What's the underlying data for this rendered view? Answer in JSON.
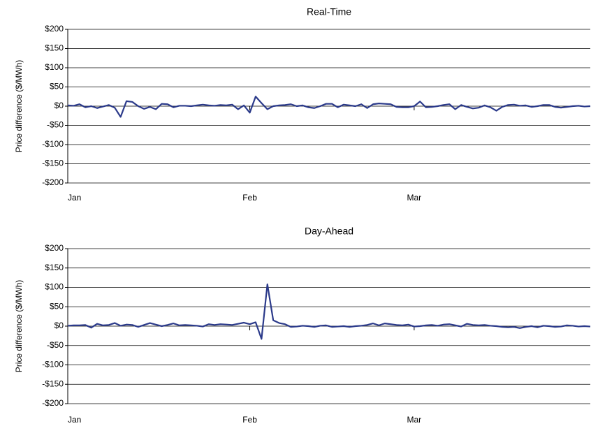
{
  "chart_data": [
    {
      "type": "line",
      "title": "Real-Time",
      "y_label": "Price difference ($/MWh)",
      "categories": [
        "Jan",
        null,
        null,
        null,
        null,
        null,
        null,
        null,
        null,
        null,
        null,
        null,
        null,
        null,
        null,
        null,
        null,
        null,
        null,
        null,
        null,
        null,
        null,
        null,
        null,
        null,
        null,
        null,
        null,
        null,
        null,
        "Feb",
        null,
        null,
        null,
        null,
        null,
        null,
        null,
        null,
        null,
        null,
        null,
        null,
        null,
        null,
        null,
        null,
        null,
        null,
        null,
        null,
        null,
        null,
        null,
        null,
        null,
        null,
        null,
        "Mar",
        null,
        null,
        null,
        null,
        null,
        null,
        null,
        null,
        null,
        null,
        null,
        null,
        null,
        null,
        null,
        null,
        null,
        null,
        null,
        null,
        null,
        null,
        null,
        null,
        null,
        null,
        null,
        null,
        null,
        null
      ],
      "series": [
        {
          "name": "Real-Time",
          "color": "#2b3a8a",
          "values": [
            2,
            1,
            5,
            -3,
            0,
            -5,
            -1,
            3,
            -4,
            -28,
            13,
            11,
            0,
            -7,
            -2,
            -8,
            6,
            5,
            -3,
            1,
            1,
            0,
            2,
            4,
            2,
            1,
            3,
            2,
            4,
            -8,
            2,
            -17,
            25,
            8,
            -8,
            0,
            2,
            3,
            5,
            0,
            2,
            -3,
            -5,
            0,
            6,
            6,
            -3,
            4,
            2,
            0,
            5,
            -5,
            5,
            7,
            6,
            5,
            -2,
            -3,
            -3,
            0,
            12,
            -3,
            -2,
            0,
            3,
            5,
            -8,
            3,
            -2,
            -6,
            -4,
            2,
            -3,
            -12,
            -2,
            3,
            4,
            1,
            2,
            -2,
            0,
            3,
            3,
            -2,
            -4,
            -2,
            0,
            1,
            -1,
            0
          ]
        }
      ],
      "ylim": [
        -200,
        200
      ],
      "yticks": [
        {
          "value": 200,
          "label": "$200"
        },
        {
          "value": 150,
          "label": "$150"
        },
        {
          "value": 100,
          "label": "$100"
        },
        {
          "value": 50,
          "label": "$50"
        },
        {
          "value": 0,
          "label": "$0"
        },
        {
          "value": -50,
          "label": "-$50"
        },
        {
          "value": -100,
          "label": "-$100"
        },
        {
          "value": -150,
          "label": "-$150"
        },
        {
          "value": -200,
          "label": "-$200"
        }
      ],
      "grid": true
    },
    {
      "type": "line",
      "title": "Day-Ahead",
      "y_label": "Price difference ($/MWh)",
      "categories": [
        "Jan",
        null,
        null,
        null,
        null,
        null,
        null,
        null,
        null,
        null,
        null,
        null,
        null,
        null,
        null,
        null,
        null,
        null,
        null,
        null,
        null,
        null,
        null,
        null,
        null,
        null,
        null,
        null,
        null,
        null,
        null,
        "Feb",
        null,
        null,
        null,
        null,
        null,
        null,
        null,
        null,
        null,
        null,
        null,
        null,
        null,
        null,
        null,
        null,
        null,
        null,
        null,
        null,
        null,
        null,
        null,
        null,
        null,
        null,
        null,
        "Mar",
        null,
        null,
        null,
        null,
        null,
        null,
        null,
        null,
        null,
        null,
        null,
        null,
        null,
        null,
        null,
        null,
        null,
        null,
        null,
        null,
        null,
        null,
        null,
        null,
        null,
        null,
        null,
        null,
        null,
        null
      ],
      "series": [
        {
          "name": "Day-Ahead",
          "color": "#2b3a8a",
          "values": [
            1,
            2,
            2,
            3,
            -4,
            6,
            2,
            3,
            8,
            1,
            4,
            3,
            -2,
            3,
            8,
            4,
            0,
            3,
            7,
            2,
            3,
            2,
            1,
            -1,
            5,
            3,
            5,
            4,
            3,
            6,
            9,
            5,
            10,
            -33,
            108,
            15,
            8,
            5,
            -2,
            -1,
            1,
            0,
            -2,
            1,
            2,
            -2,
            -1,
            0,
            -2,
            0,
            1,
            3,
            7,
            2,
            7,
            5,
            3,
            2,
            4,
            -1,
            0,
            2,
            3,
            1,
            4,
            5,
            2,
            -1,
            6,
            3,
            2,
            3,
            1,
            0,
            -2,
            -3,
            -2,
            -5,
            -2,
            0,
            -3,
            1,
            0,
            -2,
            -1,
            2,
            1,
            -1,
            0,
            -1
          ]
        }
      ],
      "ylim": [
        -200,
        200
      ],
      "yticks": [
        {
          "value": 200,
          "label": "$200"
        },
        {
          "value": 150,
          "label": "$150"
        },
        {
          "value": 100,
          "label": "$100"
        },
        {
          "value": 50,
          "label": "$50"
        },
        {
          "value": 0,
          "label": "$0"
        },
        {
          "value": -50,
          "label": "-$50"
        },
        {
          "value": -100,
          "label": "-$100"
        },
        {
          "value": -150,
          "label": "-$150"
        },
        {
          "value": -200,
          "label": "-$200"
        }
      ],
      "grid": true
    }
  ]
}
